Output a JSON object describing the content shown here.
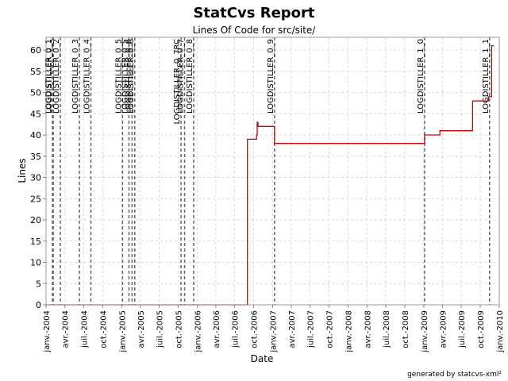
{
  "chart_data": {
    "type": "line",
    "title": "StatCvs Report",
    "subtitle": "Lines Of Code for src/site/",
    "xlabel": "Date",
    "ylabel": "Lines",
    "footer": "generated by statcvs-xml²",
    "ylim": [
      0,
      63
    ],
    "xlim": [
      "2004-01-01",
      "2010-01-01"
    ],
    "y_ticks": [
      0,
      5,
      10,
      15,
      20,
      25,
      30,
      35,
      40,
      45,
      50,
      55,
      60
    ],
    "x_ticks": [
      {
        "date": "2004-01-01",
        "label": "janv.-2004"
      },
      {
        "date": "2004-04-01",
        "label": "avr.-2004"
      },
      {
        "date": "2004-07-01",
        "label": "juil.-2004"
      },
      {
        "date": "2004-10-01",
        "label": "oct.-2004"
      },
      {
        "date": "2005-01-01",
        "label": "janv.-2005"
      },
      {
        "date": "2005-04-01",
        "label": "avr.-2005"
      },
      {
        "date": "2005-07-01",
        "label": "juil.-2005"
      },
      {
        "date": "2005-10-01",
        "label": "oct.-2005"
      },
      {
        "date": "2006-01-01",
        "label": "janv.-2006"
      },
      {
        "date": "2006-04-01",
        "label": "avr.-2006"
      },
      {
        "date": "2006-07-01",
        "label": "juil.-2006"
      },
      {
        "date": "2006-10-01",
        "label": "oct.-2006"
      },
      {
        "date": "2007-01-01",
        "label": "janv.-2007"
      },
      {
        "date": "2007-04-01",
        "label": "avr.-2007"
      },
      {
        "date": "2007-07-01",
        "label": "juil.-2007"
      },
      {
        "date": "2007-10-01",
        "label": "oct.-2007"
      },
      {
        "date": "2008-01-01",
        "label": "janv.-2008"
      },
      {
        "date": "2008-04-01",
        "label": "avr.-2008"
      },
      {
        "date": "2008-07-01",
        "label": "juil.-2008"
      },
      {
        "date": "2008-10-01",
        "label": "oct.-2008"
      },
      {
        "date": "2009-01-01",
        "label": "janv.-2009"
      },
      {
        "date": "2009-04-01",
        "label": "avr.-2009"
      },
      {
        "date": "2009-07-01",
        "label": "juil.-2009"
      },
      {
        "date": "2009-10-01",
        "label": "oct.-2009"
      },
      {
        "date": "2010-01-01",
        "label": "janv.-2010"
      }
    ],
    "grid": true,
    "series": [
      {
        "color": "#cc0000",
        "step": true,
        "points": [
          {
            "x": "2004-01-01",
            "y": 0
          },
          {
            "x": "2006-09-01",
            "y": 0
          },
          {
            "x": "2006-09-01",
            "y": 39
          },
          {
            "x": "2006-10-15",
            "y": 39
          },
          {
            "x": "2006-10-15",
            "y": 40
          },
          {
            "x": "2006-10-18",
            "y": 40
          },
          {
            "x": "2006-10-18",
            "y": 43
          },
          {
            "x": "2006-10-22",
            "y": 43
          },
          {
            "x": "2006-10-22",
            "y": 42
          },
          {
            "x": "2007-01-10",
            "y": 42
          },
          {
            "x": "2007-01-10",
            "y": 38
          },
          {
            "x": "2009-01-05",
            "y": 38
          },
          {
            "x": "2009-01-05",
            "y": 40
          },
          {
            "x": "2009-03-20",
            "y": 40
          },
          {
            "x": "2009-03-20",
            "y": 41
          },
          {
            "x": "2009-08-25",
            "y": 41
          },
          {
            "x": "2009-08-25",
            "y": 48
          },
          {
            "x": "2009-11-10",
            "y": 48
          },
          {
            "x": "2009-11-10",
            "y": 49
          },
          {
            "x": "2009-11-25",
            "y": 49
          },
          {
            "x": "2009-11-25",
            "y": 61
          },
          {
            "x": "2009-12-05",
            "y": 61
          }
        ]
      }
    ],
    "markers": [
      {
        "x": "2004-02-01",
        "label": "LOGDISTILLER_0_1"
      },
      {
        "x": "2004-02-05",
        "label": "LOGDISTILLER_0_1"
      },
      {
        "x": "2004-03-10",
        "label": "LOGDISTILLER_0_2"
      },
      {
        "x": "2004-06-10",
        "label": "LOGDISTILLER_0_3"
      },
      {
        "x": "2004-08-05",
        "label": "LOGDISTILLER_0_4"
      },
      {
        "x": "2005-01-05",
        "label": "LOGDISTILLER_0_5"
      },
      {
        "x": "2005-02-05",
        "label": "LOGDISTILLER_0_5"
      },
      {
        "x": "2005-02-20",
        "label": "LOGDISTILLER_0_6"
      },
      {
        "x": "2005-03-05",
        "label": "LOGDISTILLER_0_6"
      },
      {
        "x": "2005-10-15",
        "label": "LOGDISTILLER_0_7RC"
      },
      {
        "x": "2005-11-01",
        "label": "LOGDISTILLER_0_7"
      },
      {
        "x": "2005-12-15",
        "label": "LOGDISTILLER_0_8"
      },
      {
        "x": "2007-01-10",
        "label": "LOGDISTILLER_0_9"
      },
      {
        "x": "2009-01-05",
        "label": "LOGDISTILLER_1_0"
      },
      {
        "x": "2009-11-15",
        "label": "LOGDISTILLER_1_1"
      }
    ]
  }
}
